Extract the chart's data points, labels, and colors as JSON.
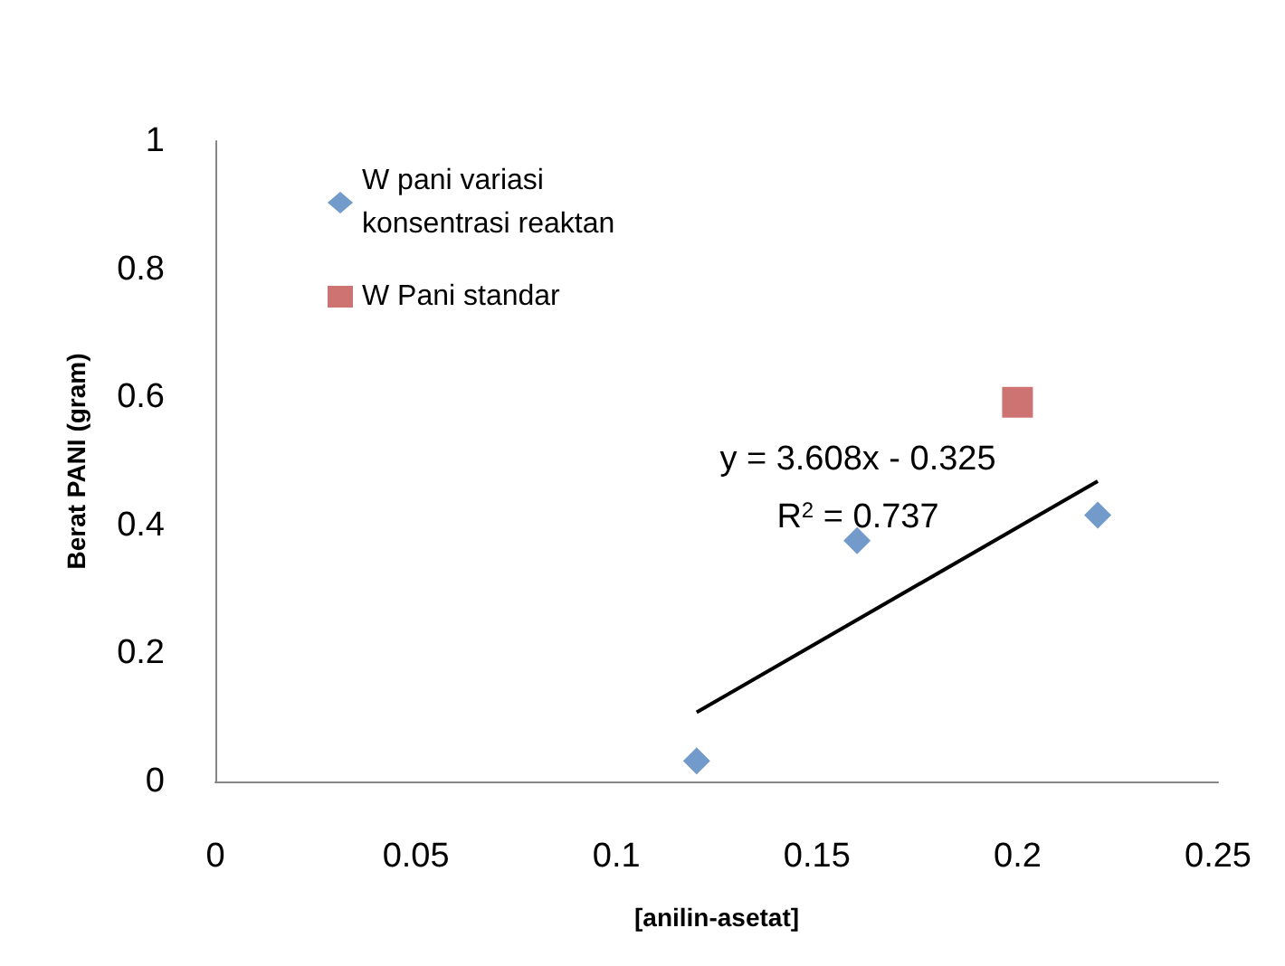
{
  "chart_data": {
    "type": "scatter",
    "xlabel": "[anilin-asetat]",
    "ylabel": "Berat PANI (gram)",
    "xlim": [
      0,
      0.25
    ],
    "xticks": [
      0,
      0.05,
      0.1,
      0.15,
      0.2,
      0.25
    ],
    "ylim": [
      0,
      1
    ],
    "yticks": [
      0,
      0.2,
      0.4,
      0.6,
      0.8,
      1
    ],
    "grid": false,
    "legend": "top left",
    "series": [
      {
        "name": "W pani variasi konsentrasi reaktan",
        "color": "#4f81bd",
        "marker": "diamond",
        "x": [
          0.12,
          0.16,
          0.22
        ],
        "values": [
          0.032,
          0.376,
          0.416
        ]
      },
      {
        "name": "W Pani standar",
        "color": "#c0504d",
        "marker": "square",
        "x": [
          0.2
        ],
        "values": [
          0.592
        ]
      },
      {
        "type": "line",
        "color": "#000000",
        "marker": "none",
        "x": [
          0.12,
          0.22
        ],
        "values": [
          0.108,
          0.469
        ]
      }
    ],
    "annotations": [
      "y = 3.608x - 0.325",
      "R$^{2}$ = 0.737"
    ]
  }
}
